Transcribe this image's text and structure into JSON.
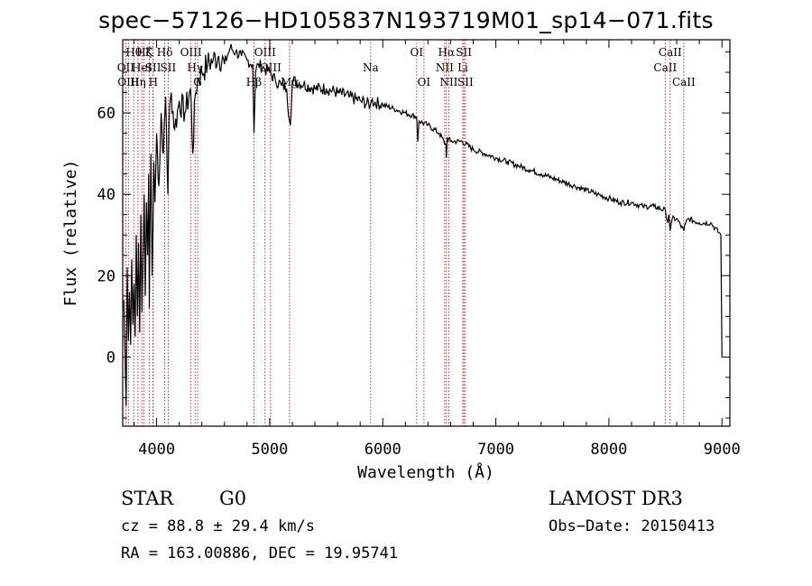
{
  "title": "spec−57126−HD105837N193719M01_sp14−071.fits",
  "chart_data": {
    "type": "line",
    "xlabel": "Wavelength (Å)",
    "ylabel": "Flux (relative)",
    "xlim": [
      3700,
      9070
    ],
    "ylim": [
      -17,
      78
    ],
    "x_ticks": [
      4000,
      5000,
      6000,
      7000,
      8000,
      9000
    ],
    "x_tick_labels": [
      "4000",
      "5000",
      "6000",
      "7000",
      "8000",
      "9000"
    ],
    "y_ticks": [
      0,
      20,
      40,
      60
    ],
    "y_tick_labels": [
      "0",
      "20",
      "40",
      "60"
    ],
    "spectrum": {
      "name": "flux",
      "x": [
        3710,
        3720,
        3730,
        3740,
        3750,
        3760,
        3770,
        3780,
        3790,
        3800,
        3810,
        3820,
        3830,
        3840,
        3850,
        3860,
        3870,
        3880,
        3890,
        3900,
        3910,
        3920,
        3930,
        3935,
        3940,
        3950,
        3960,
        3968,
        3975,
        3985,
        4000,
        4020,
        4040,
        4060,
        4080,
        4100,
        4110,
        4130,
        4160,
        4200,
        4250,
        4300,
        4320,
        4340,
        4360,
        4400,
        4450,
        4500,
        4550,
        4600,
        4650,
        4700,
        4750,
        4800,
        4850,
        4861,
        4875,
        4900,
        4950,
        5000,
        5050,
        5100,
        5150,
        5175,
        5183,
        5200,
        5300,
        5400,
        5500,
        5600,
        5700,
        5800,
        5890,
        5900,
        6000,
        6100,
        6200,
        6300,
        6310,
        6320,
        6400,
        6500,
        6560,
        6563,
        6570,
        6600,
        6700,
        6800,
        6900,
        7000,
        7100,
        7200,
        7300,
        7400,
        7500,
        7600,
        7700,
        7800,
        7900,
        8000,
        8100,
        8200,
        8300,
        8400,
        8500,
        8520,
        8530,
        8542,
        8560,
        8600,
        8662,
        8680,
        8700,
        8800,
        8900,
        8990,
        9000,
        9003
      ],
      "y": [
        14,
        2,
        -12,
        22,
        4,
        16,
        3,
        24,
        8,
        18,
        5,
        30,
        10,
        28,
        6,
        35,
        11,
        26,
        40,
        15,
        38,
        25,
        45,
        12,
        30,
        50,
        20,
        32,
        48,
        38,
        55,
        42,
        60,
        50,
        64,
        40,
        58,
        65,
        56,
        63,
        60,
        66,
        50,
        64,
        68,
        70,
        72,
        73,
        74,
        72,
        76,
        75,
        74,
        73,
        72,
        55,
        70,
        72,
        71,
        70,
        68,
        67,
        66,
        58,
        57,
        68,
        67,
        66,
        66,
        65,
        64,
        63,
        62,
        63,
        62,
        61,
        60,
        59,
        53,
        58,
        57,
        55,
        52,
        49,
        54,
        53,
        53,
        51,
        50,
        49,
        48,
        47,
        46,
        45,
        44,
        43,
        42,
        41,
        40,
        39,
        38,
        38,
        37,
        37,
        36,
        33,
        35,
        31,
        34,
        34,
        31,
        33,
        34,
        33,
        33,
        30,
        0,
        0
      ]
    },
    "lines": [
      {
        "wl": 3727,
        "label": "OII",
        "row": 2
      },
      {
        "wl": 3750,
        "label": "OIII",
        "row": 3
      },
      {
        "wl": 3798,
        "label": "Hθ",
        "row": 1
      },
      {
        "wl": 3835,
        "label": "Hη",
        "row": 3
      },
      {
        "wl": 3869,
        "label": "HeI",
        "row": 2
      },
      {
        "wl": 3889,
        "label": "Hζ",
        "row": 1
      },
      {
        "wl": 3934,
        "label": "K",
        "row": 1
      },
      {
        "wl": 3968,
        "label": "SII",
        "row": 2
      },
      {
        "wl": 3970,
        "label": "H",
        "row": 3
      },
      {
        "wl": 4072,
        "label": "Hδ",
        "row": 1
      },
      {
        "wl": 4102,
        "label": "SII",
        "row": 2
      },
      {
        "wl": 4304,
        "label": "OIII",
        "row": 1
      },
      {
        "wl": 4340,
        "label": "Hγ",
        "row": 2
      },
      {
        "wl": 4363,
        "label": "G",
        "row": 3
      },
      {
        "wl": 4861,
        "label": "Hβ",
        "row": 3
      },
      {
        "wl": 4959,
        "label": "OIII",
        "row": 1
      },
      {
        "wl": 5007,
        "label": "OIII",
        "row": 2
      },
      {
        "wl": 5176,
        "label": "Mg",
        "row": 3
      },
      {
        "wl": 5893,
        "label": "Na",
        "row": 2
      },
      {
        "wl": 6300,
        "label": "OI",
        "row": 1
      },
      {
        "wl": 6364,
        "label": "OI",
        "row": 3
      },
      {
        "wl": 6548,
        "label": "NII",
        "row": 2
      },
      {
        "wl": 6563,
        "label": "Hα",
        "row": 1
      },
      {
        "wl": 6584,
        "label": "NII",
        "row": 3
      },
      {
        "wl": 6708,
        "label": "Li",
        "row": 2
      },
      {
        "wl": 6717,
        "label": "SII",
        "row": 1
      },
      {
        "wl": 6731,
        "label": "SII",
        "row": 3
      },
      {
        "wl": 8498,
        "label": "CaII",
        "row": 2
      },
      {
        "wl": 8542,
        "label": "CaII",
        "row": 1
      },
      {
        "wl": 8662,
        "label": "CaII",
        "row": 3
      }
    ]
  },
  "info": {
    "class": "STAR",
    "subclass": "G0",
    "survey": "LAMOST DR3",
    "cz": "cz = 88.8 ± 29.4 km/s",
    "obs_date": "Obs−Date: 20150413",
    "radec": "RA = 163.00886, DEC =  19.95741"
  }
}
